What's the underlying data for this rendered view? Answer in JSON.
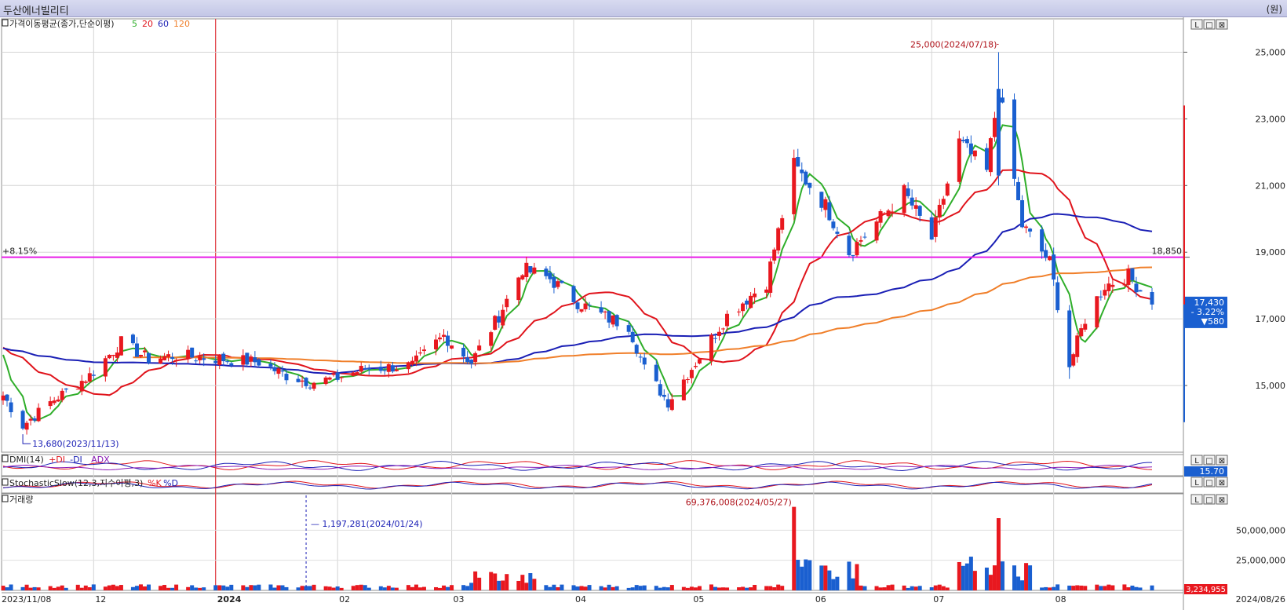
{
  "window": {
    "title": "두산에너빌리티",
    "unit": "(원)"
  },
  "colors": {
    "up": "#e8181f",
    "down": "#1a5fd0",
    "ma5": "#2fae2a",
    "ma20": "#e0141c",
    "ma60": "#1a1fb5",
    "ma120": "#f07f2a",
    "hline": "#e81ce8"
  },
  "legend": {
    "price_label": "가격이동평균(종가,단순이평)",
    "ma": [
      {
        "period": "5",
        "color": "#2fae2a"
      },
      {
        "period": "20",
        "color": "#e0141c"
      },
      {
        "period": "60",
        "color": "#1a1fb5"
      },
      {
        "period": "120",
        "color": "#f07f2a"
      }
    ]
  },
  "panels": {
    "dmi": {
      "label": "DMI(14)",
      "items": [
        "+DI",
        "-DI",
        "ADX"
      ],
      "value": "15.70"
    },
    "stoch": {
      "label": "StochasticSlow(12,3,지수이평,3)",
      "items": [
        "%K",
        "%D"
      ]
    },
    "volume": {
      "label": "거래량",
      "value": "3,234,955",
      "annotation_max": "69,376,008(2024/05/27)",
      "annotation_dash": "1,197,281(2024/01/24)"
    }
  },
  "annotations": {
    "high": "25,000(2024/07/18)",
    "low": "13,680(2023/11/13)",
    "hline_left": "+8.15%",
    "hline_right": "18,850"
  },
  "current": {
    "price": "17,430",
    "change_pct": "- 3.22%",
    "change": "▼580"
  },
  "chart_data": {
    "type": "candlestick",
    "y_axis": {
      "min": 13000,
      "max": 26000,
      "ticks": [
        15000,
        17000,
        19000,
        21000,
        23000,
        25000
      ],
      "tick_labels": [
        "15,000",
        "17,000",
        "19,000",
        "21,000",
        "23,000",
        "25,000"
      ]
    },
    "x_axis": {
      "labels": [
        "2023/11/08",
        "12",
        "2024",
        "02",
        "03",
        "04",
        "05",
        "06",
        "07",
        "08",
        "2024/08/26"
      ]
    },
    "volume_axis": {
      "ticks": [
        25000000,
        50000000
      ],
      "tick_labels": [
        "25,000,000",
        "50,000,000"
      ]
    },
    "hline": 18850,
    "anchors": [
      {
        "date": "2023-11-08",
        "price": 14700
      },
      {
        "date": "2023-11-13",
        "price": 13800
      },
      {
        "date": "2023-11-20",
        "price": 14500
      },
      {
        "date": "2023-11-30",
        "price": 15300
      },
      {
        "date": "2023-12-08",
        "price": 16300
      },
      {
        "date": "2023-12-15",
        "price": 15800
      },
      {
        "date": "2023-12-22",
        "price": 15900
      },
      {
        "date": "2024-01-02",
        "price": 15800
      },
      {
        "date": "2024-01-12",
        "price": 15700
      },
      {
        "date": "2024-01-19",
        "price": 15300
      },
      {
        "date": "2024-01-25",
        "price": 15100
      },
      {
        "date": "2024-01-31",
        "price": 15200
      },
      {
        "date": "2024-02-08",
        "price": 15500
      },
      {
        "date": "2024-02-20",
        "price": 15600
      },
      {
        "date": "2024-02-28",
        "price": 16500
      },
      {
        "date": "2024-03-06",
        "price": 15700
      },
      {
        "date": "2024-03-13",
        "price": 17100
      },
      {
        "date": "2024-03-19",
        "price": 18500
      },
      {
        "date": "2024-03-26",
        "price": 18200
      },
      {
        "date": "2024-04-02",
        "price": 17500
      },
      {
        "date": "2024-04-10",
        "price": 17000
      },
      {
        "date": "2024-04-15",
        "price": 16800
      },
      {
        "date": "2024-04-19",
        "price": 15500
      },
      {
        "date": "2024-04-25",
        "price": 14500
      },
      {
        "date": "2024-05-02",
        "price": 15700
      },
      {
        "date": "2024-05-10",
        "price": 17100
      },
      {
        "date": "2024-05-20",
        "price": 18100
      },
      {
        "date": "2024-05-27",
        "price": 21600
      },
      {
        "date": "2024-06-04",
        "price": 20400
      },
      {
        "date": "2024-06-10",
        "price": 19000
      },
      {
        "date": "2024-06-17",
        "price": 19900
      },
      {
        "date": "2024-06-24",
        "price": 20800
      },
      {
        "date": "2024-07-01",
        "price": 19400
      },
      {
        "date": "2024-07-08",
        "price": 22300
      },
      {
        "date": "2024-07-15",
        "price": 21400
      },
      {
        "date": "2024-07-18",
        "price": 23900
      },
      {
        "date": "2024-07-24",
        "price": 19800
      },
      {
        "date": "2024-07-31",
        "price": 18700
      },
      {
        "date": "2024-08-05",
        "price": 15600
      },
      {
        "date": "2024-08-09",
        "price": 17000
      },
      {
        "date": "2024-08-14",
        "price": 18000
      },
      {
        "date": "2024-08-20",
        "price": 18300
      },
      {
        "date": "2024-08-26",
        "price": 17430
      }
    ]
  }
}
